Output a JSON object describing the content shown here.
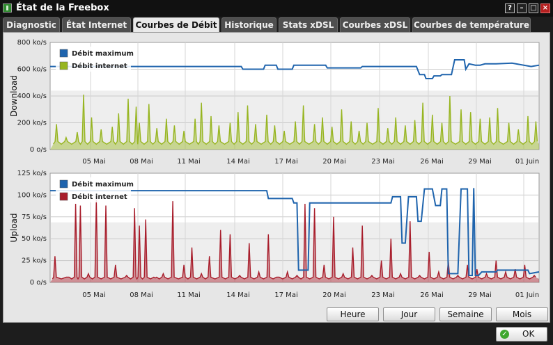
{
  "window": {
    "title": "État de la Freebox",
    "controls": [
      "?",
      "–",
      "□",
      "×"
    ]
  },
  "tabs": [
    {
      "label": "Diagnostic",
      "active": false
    },
    {
      "label": "État Internet",
      "active": false
    },
    {
      "label": "Courbes de Débit",
      "active": true
    },
    {
      "label": "Historique",
      "active": false
    },
    {
      "label": "Stats xDSL",
      "active": false
    },
    {
      "label": "Courbes xDSL",
      "active": false
    },
    {
      "label": "Courbes de température",
      "active": false
    }
  ],
  "buttons": {
    "heure": "Heure",
    "jour": "Jour",
    "semaine": "Semaine",
    "mois": "Mois",
    "ok": "OK"
  },
  "colors": {
    "max": "#1f64ad",
    "download": "#97b520",
    "upload": "#a81d2b"
  },
  "chart_data": [
    {
      "type": "area",
      "ylabel": "Download",
      "ylim": [
        0,
        800
      ],
      "yticks": [
        "0 o/s",
        "200 ko/s",
        "400 ko/s",
        "600 ko/s",
        "800 ko/s"
      ],
      "xticks": [
        "05 Mai",
        "08 Mai",
        "11 Mai",
        "14 Mai",
        "17 Mai",
        "20 Mai",
        "23 Mai",
        "26 Mai",
        "29 Mai",
        "01 Juin"
      ],
      "x_range_days": [
        0,
        30.7
      ],
      "legend": {
        "position": "top-left",
        "entries": [
          "Débit maximum",
          "Débit internet"
        ]
      },
      "grid": true,
      "series": [
        {
          "name": "Débit maximum",
          "kind": "line",
          "x": [
            0,
            12.0,
            12.1,
            13.4,
            13.5,
            14.2,
            14.3,
            15.2,
            15.3,
            17.3,
            17.4,
            19.5,
            19.6,
            23.0,
            23.2,
            23.5,
            23.6,
            24.0,
            24.1,
            24.5,
            24.6,
            25.2,
            25.4,
            26.0,
            26.1,
            26.3,
            26.7,
            27.0,
            27.3,
            28.0,
            29.0,
            30.2,
            30.7
          ],
          "y": [
            620,
            620,
            600,
            600,
            630,
            630,
            600,
            600,
            630,
            630,
            610,
            610,
            620,
            620,
            560,
            560,
            530,
            530,
            550,
            550,
            560,
            560,
            670,
            670,
            600,
            640,
            630,
            630,
            640,
            640,
            645,
            620,
            630
          ]
        },
        {
          "name": "Débit internet",
          "kind": "area",
          "x": [
            0.4,
            1.0,
            1.7,
            2.1,
            2.6,
            3.2,
            3.9,
            4.3,
            4.9,
            5.4,
            5.6,
            6.2,
            6.7,
            7.3,
            7.8,
            8.4,
            9.1,
            9.5,
            10.1,
            10.6,
            11.3,
            11.8,
            12.4,
            12.9,
            13.6,
            14.1,
            14.7,
            15.4,
            15.9,
            16.6,
            17.1,
            17.7,
            18.3,
            18.9,
            19.4,
            19.9,
            20.6,
            21.2,
            21.7,
            22.3,
            22.9,
            23.4,
            24.0,
            24.6,
            25.1,
            25.8,
            26.4,
            27.0,
            27.6,
            28.1,
            28.8,
            29.4,
            30.0,
            30.5
          ],
          "y": [
            190,
            90,
            130,
            410,
            240,
            150,
            170,
            270,
            380,
            320,
            200,
            340,
            160,
            230,
            180,
            140,
            230,
            350,
            250,
            180,
            200,
            280,
            330,
            190,
            260,
            180,
            140,
            210,
            330,
            190,
            240,
            170,
            300,
            210,
            140,
            200,
            310,
            160,
            240,
            180,
            220,
            350,
            260,
            200,
            400,
            300,
            280,
            230,
            240,
            310,
            200,
            150,
            250,
            210
          ]
        }
      ]
    },
    {
      "type": "area",
      "ylabel": "Upload",
      "ylim": [
        0,
        125
      ],
      "yticks": [
        "0 o/s",
        "25 ko/s",
        "50 ko/s",
        "75 ko/s",
        "100 ko/s",
        "125 ko/s"
      ],
      "xticks": [
        "05 Mai",
        "08 Mai",
        "11 Mai",
        "14 Mai",
        "17 Mai",
        "20 Mai",
        "23 Mai",
        "26 Mai",
        "29 Mai",
        "01 Juin"
      ],
      "x_range_days": [
        0,
        30.7
      ],
      "legend": {
        "position": "top-left",
        "entries": [
          "Débit maximum",
          "Débit internet"
        ]
      },
      "grid": true,
      "series": [
        {
          "name": "Débit maximum",
          "kind": "line",
          "x": [
            0,
            13.6,
            13.7,
            15.2,
            15.3,
            15.5,
            15.6,
            16.2,
            16.3,
            21.4,
            21.5,
            22.0,
            22.1,
            22.3,
            22.5,
            23.0,
            23.1,
            23.3,
            23.5,
            24.0,
            24.2,
            24.5,
            24.6,
            24.9,
            25.0,
            25.6,
            25.8,
            26.2,
            26.3,
            26.5,
            26.6,
            26.7,
            26.9,
            27.0,
            27.1,
            28.0,
            28.1,
            29.0,
            30.0,
            30.1,
            30.7
          ],
          "y": [
            105,
            105,
            96,
            96,
            91,
            91,
            14,
            14,
            91,
            91,
            98,
            98,
            45,
            45,
            98,
            98,
            70,
            70,
            107,
            107,
            88,
            88,
            107,
            107,
            10,
            10,
            107,
            107,
            8,
            8,
            108,
            8,
            8,
            10,
            12,
            12,
            14,
            14,
            14,
            10,
            12
          ]
        },
        {
          "name": "Débit internet",
          "kind": "area",
          "x": [
            0.3,
            1.1,
            1.6,
            1.9,
            2.4,
            2.9,
            3.5,
            4.1,
            4.8,
            5.3,
            5.6,
            6.0,
            6.6,
            7.1,
            7.7,
            8.4,
            8.9,
            9.5,
            10.0,
            10.7,
            11.3,
            11.9,
            12.5,
            13.1,
            13.7,
            14.3,
            14.9,
            15.5,
            16.0,
            16.6,
            17.2,
            17.8,
            18.4,
            19.0,
            19.6,
            20.2,
            20.8,
            21.4,
            22.0,
            22.6,
            23.2,
            23.8,
            24.4,
            25.0,
            25.6,
            26.2,
            26.8,
            27.4,
            28.0,
            28.6,
            29.2,
            29.8,
            30.4
          ],
          "y": [
            30,
            6,
            90,
            88,
            10,
            95,
            88,
            20,
            8,
            85,
            65,
            72,
            5,
            10,
            93,
            20,
            40,
            10,
            30,
            60,
            55,
            8,
            45,
            12,
            55,
            6,
            12,
            8,
            90,
            85,
            20,
            75,
            10,
            40,
            65,
            8,
            25,
            50,
            10,
            70,
            8,
            35,
            12,
            25,
            8,
            20,
            15,
            10,
            25,
            12,
            15,
            20,
            8
          ]
        }
      ]
    }
  ]
}
